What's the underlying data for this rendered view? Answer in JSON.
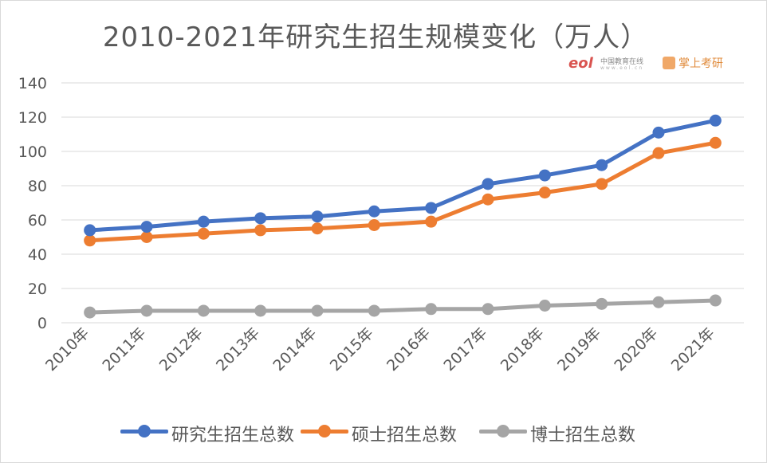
{
  "chart_data": {
    "type": "line",
    "title": "2010-2021年研究生招生规模变化（万人）",
    "xlabel": "",
    "ylabel": "",
    "categories": [
      "2010年",
      "2011年",
      "2012年",
      "2013年",
      "2014年",
      "2015年",
      "2016年",
      "2017年",
      "2018年",
      "2019年",
      "2020年",
      "2021年"
    ],
    "ylim": [
      0,
      140
    ],
    "yticks": [
      0,
      20,
      40,
      60,
      80,
      100,
      120,
      140
    ],
    "grid": true,
    "legend_position": "bottom",
    "series": [
      {
        "name": "研究生招生总数",
        "color": "#4472c4",
        "values": [
          54,
          56,
          59,
          61,
          62,
          65,
          67,
          81,
          86,
          92,
          111,
          118
        ]
      },
      {
        "name": "硕士招生总数",
        "color": "#ed7d31",
        "values": [
          48,
          50,
          52,
          54,
          55,
          57,
          59,
          72,
          76,
          81,
          99,
          105
        ]
      },
      {
        "name": "博士招生总数",
        "color": "#a5a5a5",
        "values": [
          6,
          7,
          7,
          7,
          7,
          7,
          8,
          8,
          10,
          11,
          12,
          13
        ]
      }
    ]
  },
  "logos": {
    "eol_mark": "eol",
    "eol_text": "中国教育在线",
    "eol_sub": "www.eol.cn",
    "kao_text": "掌上考研"
  }
}
